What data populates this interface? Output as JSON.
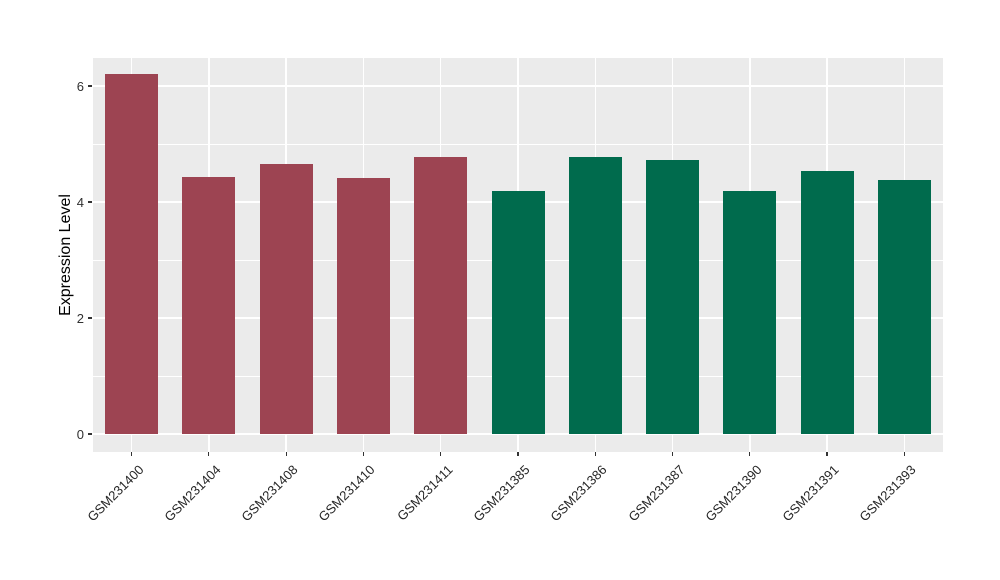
{
  "chart_data": {
    "type": "bar",
    "title": "",
    "xlabel": "",
    "ylabel": "Expression Level",
    "ylim": [
      0,
      6.5
    ],
    "yticks": [
      0,
      2,
      4,
      6
    ],
    "yticks_minor": [
      1,
      3,
      5
    ],
    "grid": "on",
    "legend_position": "none",
    "panel_background_color": "#EBEBEB",
    "gridline_color": "#FFFFFF",
    "tick_color": "#333333",
    "group_colors": {
      "left": "#9D4452",
      "right": "#006B4D"
    },
    "categories": [
      "GSM231400",
      "GSM231404",
      "GSM231408",
      "GSM231410",
      "GSM231411",
      "GSM231385",
      "GSM231386",
      "GSM231387",
      "GSM231390",
      "GSM231391",
      "GSM231393"
    ],
    "values": [
      6.2,
      4.43,
      4.65,
      4.41,
      4.78,
      4.19,
      4.78,
      4.73,
      4.19,
      4.54,
      4.38
    ],
    "items": [
      {
        "label": "GSM231400",
        "value": 6.2,
        "group": "left"
      },
      {
        "label": "GSM231404",
        "value": 4.43,
        "group": "left"
      },
      {
        "label": "GSM231408",
        "value": 4.65,
        "group": "left"
      },
      {
        "label": "GSM231410",
        "value": 4.41,
        "group": "left"
      },
      {
        "label": "GSM231411",
        "value": 4.78,
        "group": "left"
      },
      {
        "label": "GSM231385",
        "value": 4.19,
        "group": "right"
      },
      {
        "label": "GSM231386",
        "value": 4.78,
        "group": "right"
      },
      {
        "label": "GSM231387",
        "value": 4.73,
        "group": "right"
      },
      {
        "label": "GSM231390",
        "value": 4.19,
        "group": "right"
      },
      {
        "label": "GSM231391",
        "value": 4.54,
        "group": "right"
      },
      {
        "label": "GSM231393",
        "value": 4.38,
        "group": "right"
      }
    ]
  }
}
